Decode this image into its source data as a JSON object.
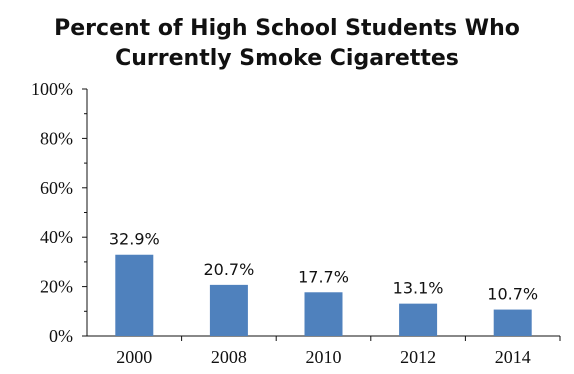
{
  "chart_data": {
    "type": "bar",
    "title_lines": [
      "Percent of High School Students Who",
      "Currently Smoke Cigarettes"
    ],
    "categories": [
      "2000",
      "2008",
      "2010",
      "2012",
      "2014"
    ],
    "values": [
      32.9,
      20.7,
      17.7,
      13.1,
      10.7
    ],
    "data_labels": [
      "32.9%",
      "20.7%",
      "17.7%",
      "13.1%",
      "10.7%"
    ],
    "y_ticks": [
      "0%",
      "20%",
      "40%",
      "60%",
      "80%",
      "100%"
    ],
    "ylim": [
      0,
      100
    ],
    "xlabel": "",
    "ylabel": "",
    "grid": false,
    "bar_color": "#4f81bd"
  }
}
